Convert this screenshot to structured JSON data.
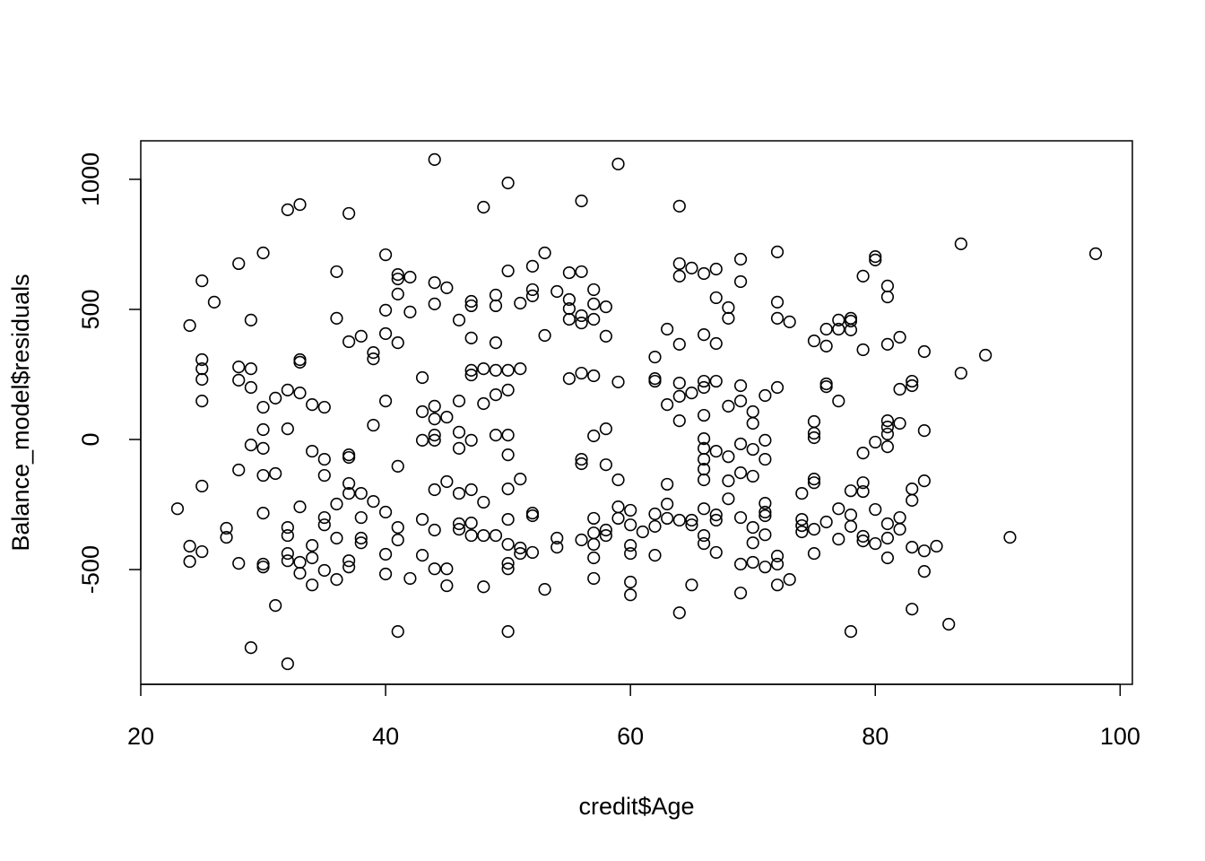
{
  "chart_data": {
    "type": "scatter",
    "x_label": "credit$Age",
    "y_label": "Balance_model$residuals",
    "xlim": [
      20,
      101
    ],
    "ylim": [
      -941,
      1148
    ],
    "xticks": [
      20,
      40,
      60,
      80,
      100
    ],
    "yticks": [
      -500,
      0,
      500,
      1000
    ],
    "color": "#000000",
    "x": [
      23,
      24,
      24,
      24,
      25,
      25,
      25,
      25,
      25,
      25,
      25,
      26,
      27,
      27,
      28,
      28,
      28,
      28,
      28,
      29,
      29,
      29,
      29,
      29,
      30,
      30,
      30,
      30,
      30,
      30,
      30,
      30,
      31,
      31,
      31,
      32,
      32,
      32,
      32,
      32,
      32,
      32,
      32,
      33,
      33,
      33,
      33,
      33,
      33,
      33,
      34,
      34,
      34,
      34,
      34,
      35,
      35,
      35,
      35,
      35,
      35,
      36,
      36,
      36,
      36,
      36,
      37,
      37,
      37,
      37,
      37,
      37,
      37,
      37,
      38,
      38,
      38,
      38,
      38,
      39,
      39,
      39,
      39,
      40,
      40,
      40,
      40,
      40,
      40,
      40,
      41,
      41,
      41,
      41,
      41,
      41,
      41,
      41,
      42,
      42,
      42,
      43,
      43,
      43,
      43,
      43,
      44,
      44,
      44,
      44,
      44,
      44,
      44,
      44,
      44,
      44,
      45,
      45,
      45,
      45,
      45,
      46,
      46,
      46,
      46,
      46,
      46,
      46,
      47,
      47,
      47,
      47,
      47,
      47,
      47,
      47,
      47,
      48,
      48,
      48,
      48,
      48,
      48,
      49,
      49,
      49,
      49,
      49,
      49,
      49,
      50,
      50,
      50,
      50,
      50,
      50,
      50,
      50,
      50,
      50,
      50,
      50,
      51,
      51,
      51,
      51,
      51,
      52,
      52,
      52,
      52,
      52,
      52,
      53,
      53,
      53,
      54,
      54,
      54,
      55,
      55,
      55,
      55,
      55,
      56,
      56,
      56,
      56,
      56,
      56,
      56,
      56,
      57,
      57,
      57,
      57,
      57,
      57,
      57,
      57,
      57,
      57,
      58,
      58,
      58,
      58,
      58,
      58,
      59,
      59,
      59,
      59,
      59,
      60,
      60,
      60,
      60,
      60,
      60,
      61,
      62,
      62,
      62,
      62,
      62,
      62,
      63,
      63,
      63,
      63,
      63,
      64,
      64,
      64,
      64,
      64,
      64,
      64,
      64,
      64,
      65,
      65,
      65,
      65,
      65,
      66,
      66,
      66,
      66,
      66,
      66,
      66,
      66,
      66,
      66,
      66,
      66,
      66,
      67,
      67,
      67,
      67,
      67,
      67,
      67,
      67,
      68,
      68,
      68,
      68,
      68,
      68,
      69,
      69,
      69,
      69,
      69,
      69,
      69,
      69,
      69,
      70,
      70,
      70,
      70,
      70,
      70,
      70,
      71,
      71,
      71,
      71,
      71,
      71,
      71,
      71,
      72,
      72,
      72,
      72,
      72,
      72,
      72,
      73,
      73,
      74,
      74,
      74,
      74,
      75,
      75,
      75,
      75,
      75,
      75,
      75,
      75,
      76,
      76,
      76,
      76,
      76,
      77,
      77,
      77,
      77,
      77,
      78,
      78,
      78,
      78,
      78,
      78,
      78,
      79,
      79,
      79,
      79,
      79,
      79,
      79,
      80,
      80,
      80,
      80,
      80,
      81,
      81,
      81,
      81,
      81,
      81,
      81,
      81,
      81,
      81,
      82,
      82,
      82,
      82,
      82,
      83,
      83,
      83,
      83,
      83,
      83,
      84,
      84,
      84,
      84,
      84,
      85,
      86,
      87,
      87,
      89,
      91,
      98
    ],
    "values": [
      -266,
      438,
      -410,
      -469,
      610,
      307,
      272,
      231,
      148,
      -179,
      -431,
      528,
      -341,
      -376,
      676,
      279,
      228,
      -117,
      -476,
      459,
      272,
      200,
      -21,
      -800,
      717,
      124,
      38,
      -34,
      -138,
      -283,
      -479,
      -490,
      159,
      -131,
      -638,
      883,
      190,
      41,
      -338,
      -369,
      -438,
      -466,
      -862,
      903,
      307,
      297,
      179,
      -259,
      -472,
      -514,
      134,
      -45,
      -407,
      -455,
      -559,
      124,
      -76,
      -138,
      -300,
      -328,
      -503,
      645,
      466,
      -248,
      -379,
      -538,
      869,
      376,
      -59,
      -69,
      -169,
      -207,
      -466,
      -490,
      397,
      -207,
      -300,
      -379,
      -397,
      334,
      310,
      55,
      -238,
      710,
      497,
      407,
      148,
      -279,
      -441,
      -517,
      634,
      617,
      559,
      372,
      -103,
      -338,
      -386,
      -738,
      624,
      490,
      -534,
      238,
      107,
      -3,
      -307,
      -445,
      1076,
      603,
      521,
      128,
      79,
      17,
      -3,
      -193,
      -348,
      -497,
      583,
      86,
      -162,
      -497,
      -562,
      459,
      148,
      28,
      -34,
      -207,
      -324,
      -345,
      531,
      514,
      390,
      266,
      248,
      -3,
      -193,
      -321,
      -369,
      893,
      272,
      138,
      -241,
      -369,
      -566,
      555,
      514,
      372,
      266,
      172,
      17,
      -369,
      986,
      648,
      266,
      190,
      17,
      -59,
      -190,
      -307,
      -403,
      -476,
      -497,
      -738,
      524,
      272,
      -152,
      -417,
      -438,
      666,
      576,
      552,
      -283,
      -293,
      -434,
      717,
      400,
      -576,
      569,
      -379,
      -414,
      641,
      538,
      503,
      462,
      234,
      917,
      645,
      476,
      448,
      255,
      -76,
      -93,
      -386,
      576,
      521,
      462,
      245,
      14,
      -303,
      -359,
      -403,
      -455,
      -534,
      510,
      397,
      41,
      -97,
      -348,
      -369,
      1059,
      221,
      -155,
      -259,
      -303,
      -272,
      -328,
      -407,
      -438,
      -548,
      -597,
      -355,
      317,
      234,
      224,
      -286,
      -334,
      -445,
      424,
      134,
      -172,
      -248,
      -303,
      897,
      676,
      628,
      366,
      217,
      166,
      72,
      -310,
      -666,
      659,
      179,
      -310,
      -328,
      -559,
      638,
      403,
      224,
      200,
      93,
      3,
      -34,
      -76,
      -114,
      -155,
      -266,
      -369,
      -400,
      655,
      545,
      369,
      224,
      -45,
      -290,
      -310,
      -434,
      507,
      466,
      128,
      -66,
      -159,
      -228,
      693,
      607,
      207,
      148,
      -17,
      -128,
      -300,
      -479,
      -590,
      107,
      62,
      -38,
      -141,
      -338,
      -397,
      -472,
      169,
      -3,
      -76,
      -245,
      -279,
      -293,
      -366,
      -490,
      721,
      528,
      466,
      200,
      -448,
      -479,
      -559,
      452,
      -538,
      -207,
      -307,
      -331,
      -355,
      379,
      69,
      24,
      7,
      -152,
      -166,
      -345,
      -438,
      424,
      359,
      214,
      203,
      -317,
      459,
      424,
      148,
      -266,
      -383,
      466,
      455,
      421,
      -197,
      -290,
      -334,
      -738,
      628,
      345,
      -52,
      -166,
      -200,
      -372,
      -390,
      703,
      690,
      -10,
      -269,
      -400,
      590,
      548,
      366,
      72,
      48,
      21,
      -28,
      -324,
      -379,
      -455,
      393,
      193,
      62,
      -300,
      -345,
      224,
      207,
      -190,
      -234,
      -414,
      -652,
      338,
      34,
      -159,
      -428,
      -507,
      -410,
      -710,
      752,
      255,
      324,
      -376,
      714
    ]
  }
}
